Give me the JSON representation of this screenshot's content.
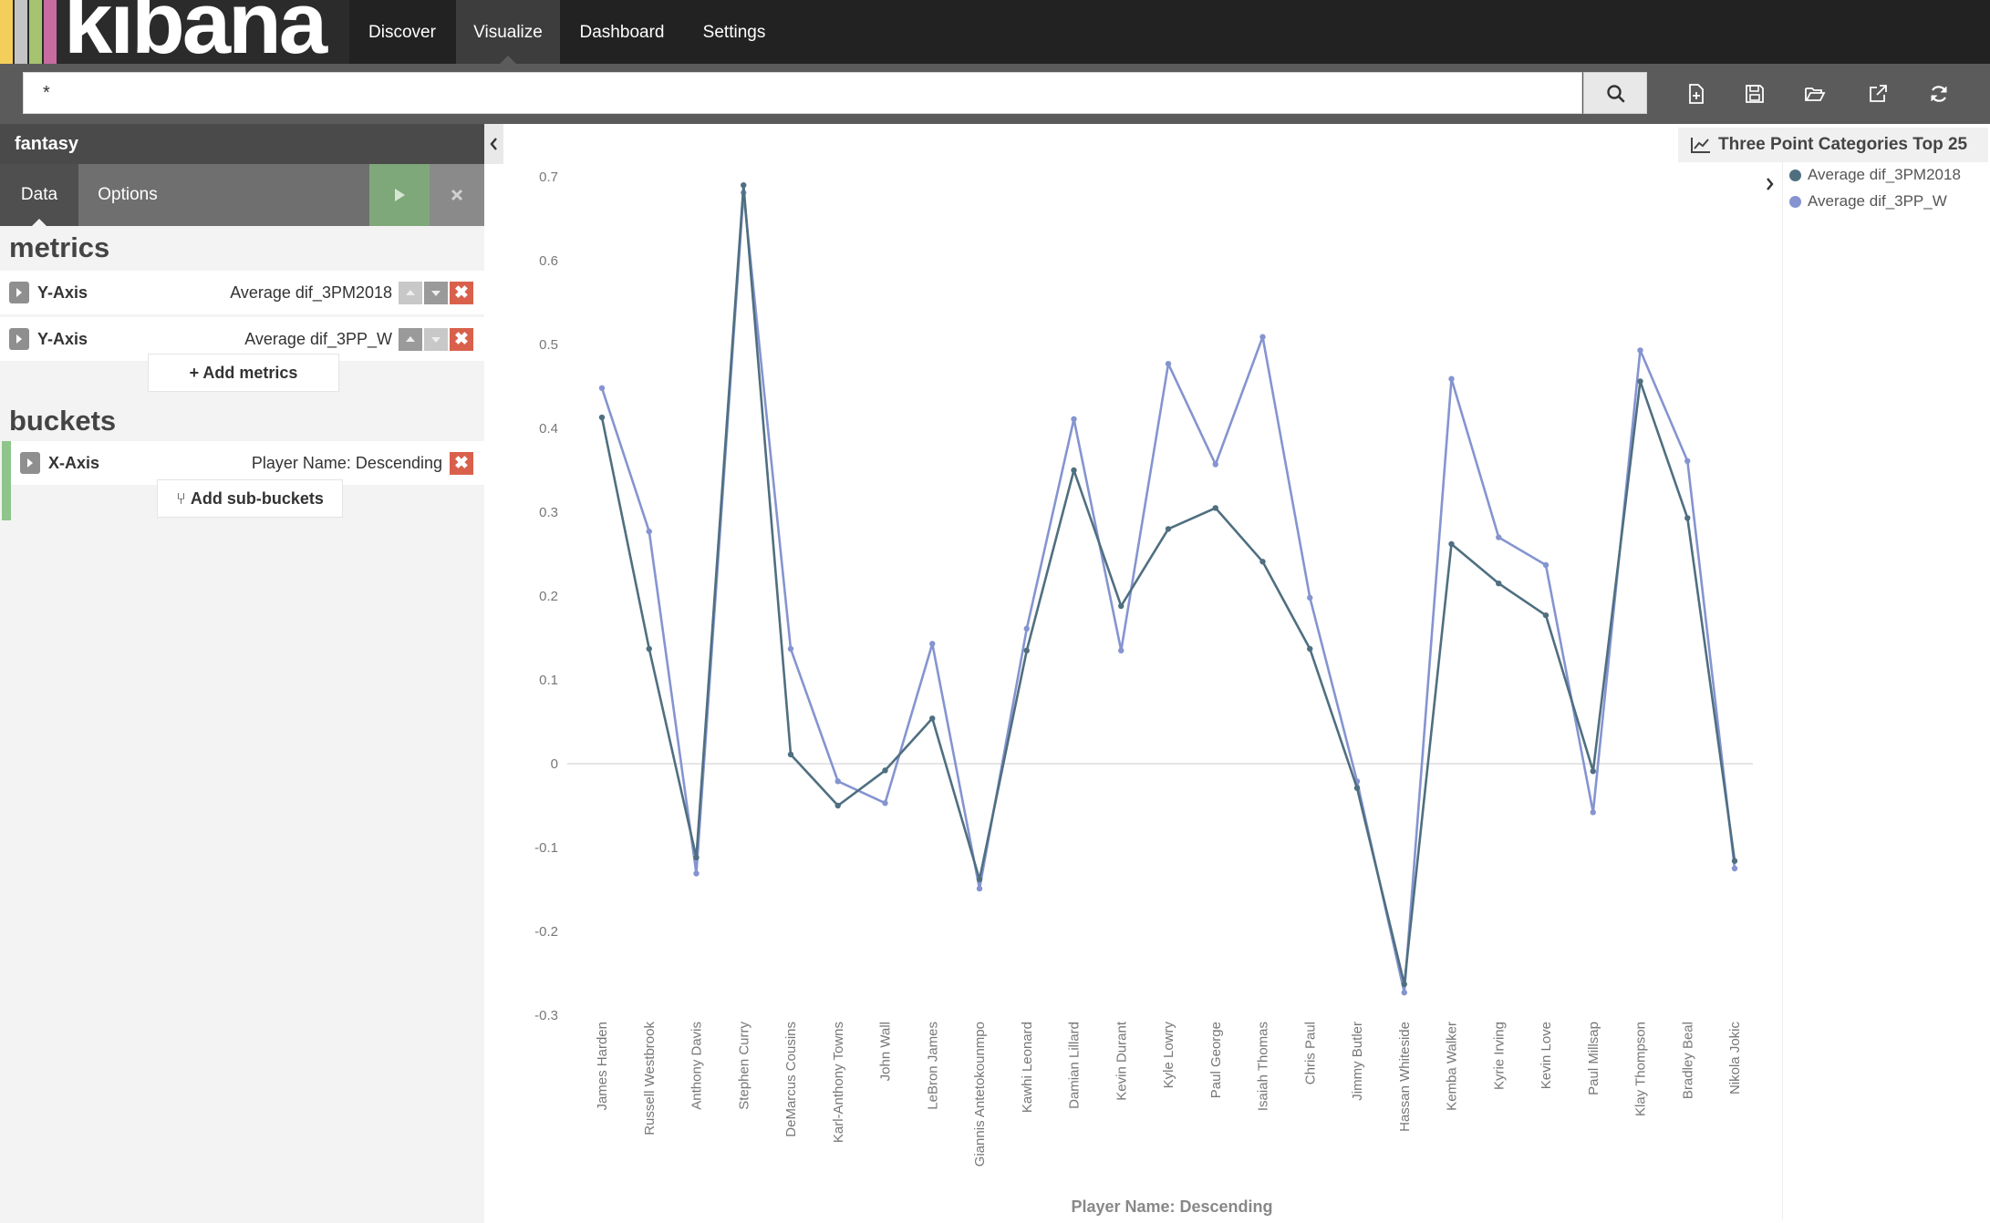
{
  "app": {
    "logo_text": "kibana",
    "logo_colors": [
      "#e8b845",
      "#c4c4c4",
      "#a6c36f",
      "#c76ba0"
    ]
  },
  "nav": {
    "tabs": [
      {
        "label": "Discover",
        "active": false
      },
      {
        "label": "Visualize",
        "active": true
      },
      {
        "label": "Dashboard",
        "active": false
      },
      {
        "label": "Settings",
        "active": false
      }
    ]
  },
  "search": {
    "query": "*",
    "icon": "search-icon"
  },
  "toolbar": {
    "icons": [
      "new-visualization-icon",
      "save-icon",
      "open-icon",
      "share-icon",
      "refresh-icon"
    ]
  },
  "sidebar": {
    "index_title": "fantasy",
    "tabs": [
      {
        "label": "Data",
        "active": true
      },
      {
        "label": "Options",
        "active": false
      }
    ],
    "apply_icon": "play-icon",
    "discard_icon": "close-icon",
    "metrics_title": "metrics",
    "metrics": [
      {
        "axis": "Y-Axis",
        "description": "Average dif_3PM2018"
      },
      {
        "axis": "Y-Axis",
        "description": "Average dif_3PP_W"
      }
    ],
    "add_metrics_label": "+ Add metrics",
    "buckets_title": "buckets",
    "buckets": [
      {
        "axis": "X-Axis",
        "description": "Player Name: Descending"
      }
    ],
    "add_buckets_label": "Add sub-buckets"
  },
  "visualization": {
    "title": "Three Point Categories Top 25",
    "legend": [
      {
        "name": "Average dif_3PM2018",
        "color": "#4f6f80"
      },
      {
        "name": "Average dif_3PP_W",
        "color": "#8594d0"
      }
    ]
  },
  "chart_data": {
    "type": "line",
    "title": "Three Point Categories Top 25",
    "xlabel": "Player Name: Descending",
    "ylabel": "",
    "ylim": [
      -0.3,
      0.7
    ],
    "yticks": [
      -0.3,
      -0.2,
      -0.1,
      0,
      0.1,
      0.2,
      0.3,
      0.4,
      0.5,
      0.6,
      0.7
    ],
    "grid": false,
    "legend_position": "top-right",
    "categories": [
      "James Harden",
      "Russell Westbrook",
      "Anthony Davis",
      "Stephen Curry",
      "DeMarcus Cousins",
      "Karl-Anthony Towns",
      "John Wall",
      "LeBron James",
      "Giannis Antetokounmpo",
      "Kawhi Leonard",
      "Damian Lillard",
      "Kevin Durant",
      "Kyle Lowry",
      "Paul George",
      "Isaiah Thomas",
      "Chris Paul",
      "Jimmy Butler",
      "Hassan Whiteside",
      "Kemba Walker",
      "Kyrie Irving",
      "Kevin Love",
      "Paul Millsap",
      "Klay Thompson",
      "Bradley Beal",
      "Nikola Jokic"
    ],
    "series": [
      {
        "name": "Average dif_3PM2018",
        "color": "#4f6f80",
        "values": [
          0.413,
          0.137,
          -0.112,
          0.69,
          0.011,
          -0.05,
          -0.008,
          0.054,
          -0.138,
          0.135,
          0.35,
          0.188,
          0.28,
          0.305,
          0.241,
          0.137,
          -0.029,
          -0.263,
          0.262,
          0.215,
          0.177,
          -0.009,
          0.456,
          0.293,
          -0.116
        ]
      },
      {
        "name": "Average dif_3PP_W",
        "color": "#8594d0",
        "values": [
          0.448,
          0.277,
          -0.131,
          0.681,
          0.137,
          -0.021,
          -0.047,
          0.143,
          -0.149,
          0.161,
          0.411,
          0.135,
          0.477,
          0.357,
          0.509,
          0.198,
          -0.021,
          -0.273,
          0.459,
          0.27,
          0.237,
          -0.058,
          0.493,
          0.361,
          -0.125
        ]
      }
    ]
  }
}
